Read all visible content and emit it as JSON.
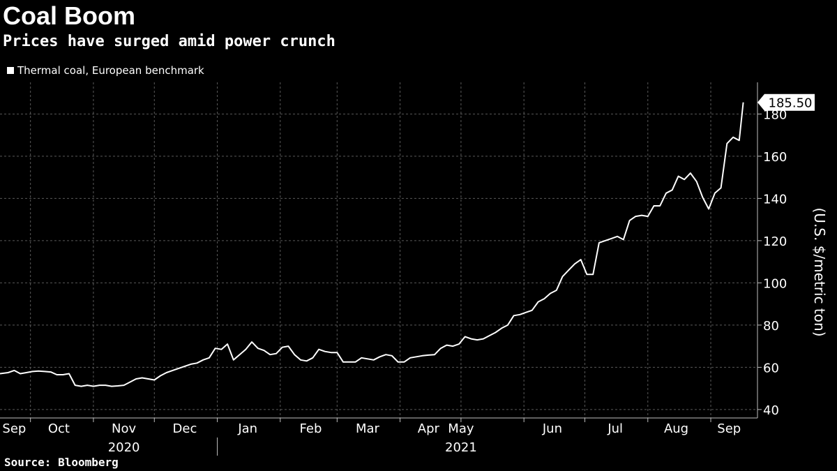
{
  "header": {
    "title": "Coal Boom",
    "subtitle": "Prices have surged amid power crunch"
  },
  "legend": {
    "label": "Thermal coal, European benchmark"
  },
  "source": "Source: Bloomberg",
  "colors": {
    "background": "#000000",
    "line": "#ffffff",
    "grid": "#5a5a5a",
    "axis": "#bfbfbf"
  },
  "chart_data": {
    "type": "line",
    "title": "Coal Boom",
    "subtitle": "Prices have surged amid power crunch",
    "xlabel": "",
    "ylabel": "(U.S. $/metric ton)",
    "ylim": [
      36,
      195
    ],
    "yticks": [
      40,
      60,
      80,
      100,
      120,
      140,
      160,
      180
    ],
    "y_axis_side": "right",
    "grid": true,
    "legend_position": "top-left",
    "last_value_label": "185.50",
    "xlim": [
      "2020-09-16",
      "2021-09-24"
    ],
    "x_tick_labels": [
      {
        "label": "Sep",
        "date": "2020-09-23"
      },
      {
        "label": "Oct",
        "date": "2020-10-15"
      },
      {
        "label": "Nov",
        "date": "2020-11-16"
      },
      {
        "label": "Dec",
        "date": "2020-12-16"
      },
      {
        "label": "Jan",
        "date": "2021-01-16"
      },
      {
        "label": "Feb",
        "date": "2021-02-16"
      },
      {
        "label": "Mar",
        "date": "2021-03-16"
      },
      {
        "label": "Apr",
        "date": "2021-04-15"
      },
      {
        "label": "May",
        "date": "2021-05-01"
      },
      {
        "label": "Jun",
        "date": "2021-06-15"
      },
      {
        "label": "Jul",
        "date": "2021-07-16"
      },
      {
        "label": "Aug",
        "date": "2021-08-15"
      },
      {
        "label": "Sep",
        "date": "2021-09-10"
      }
    ],
    "month_gridlines": [
      "2020-10-01",
      "2020-11-01",
      "2020-12-01",
      "2021-01-01",
      "2021-02-01",
      "2021-03-01",
      "2021-04-01",
      "2021-05-01",
      "2021-06-01",
      "2021-07-01",
      "2021-08-01",
      "2021-09-01"
    ],
    "year_labels": [
      {
        "label": "2020",
        "date": "2020-11-16"
      },
      {
        "label": "2021",
        "date": "2021-05-01"
      }
    ],
    "year_divider": "2021-01-01",
    "series": [
      {
        "name": "Thermal coal, European benchmark",
        "x": [
          "2020-09-16",
          "2020-09-20",
          "2020-09-23",
          "2020-09-26",
          "2020-09-29",
          "2020-10-02",
          "2020-10-05",
          "2020-10-08",
          "2020-10-11",
          "2020-10-14",
          "2020-10-17",
          "2020-10-20",
          "2020-10-23",
          "2020-10-26",
          "2020-10-29",
          "2020-11-01",
          "2020-11-04",
          "2020-11-07",
          "2020-11-10",
          "2020-11-13",
          "2020-11-16",
          "2020-11-19",
          "2020-11-22",
          "2020-11-25",
          "2020-11-28",
          "2020-12-01",
          "2020-12-04",
          "2020-12-07",
          "2020-12-10",
          "2020-12-13",
          "2020-12-16",
          "2020-12-19",
          "2020-12-22",
          "2020-12-25",
          "2020-12-28",
          "2020-12-31",
          "2021-01-03",
          "2021-01-06",
          "2021-01-09",
          "2021-01-12",
          "2021-01-15",
          "2021-01-18",
          "2021-01-21",
          "2021-01-24",
          "2021-01-27",
          "2021-01-30",
          "2021-02-02",
          "2021-02-05",
          "2021-02-08",
          "2021-02-11",
          "2021-02-14",
          "2021-02-17",
          "2021-02-20",
          "2021-02-23",
          "2021-02-26",
          "2021-03-01",
          "2021-03-04",
          "2021-03-07",
          "2021-03-10",
          "2021-03-13",
          "2021-03-16",
          "2021-03-19",
          "2021-03-22",
          "2021-03-25",
          "2021-03-28",
          "2021-03-31",
          "2021-04-03",
          "2021-04-06",
          "2021-04-09",
          "2021-04-12",
          "2021-04-15",
          "2021-04-18",
          "2021-04-21",
          "2021-04-24",
          "2021-04-27",
          "2021-04-30",
          "2021-05-03",
          "2021-05-06",
          "2021-05-09",
          "2021-05-12",
          "2021-05-15",
          "2021-05-18",
          "2021-05-21",
          "2021-05-24",
          "2021-05-27",
          "2021-05-30",
          "2021-06-02",
          "2021-06-05",
          "2021-06-08",
          "2021-06-11",
          "2021-06-14",
          "2021-06-17",
          "2021-06-20",
          "2021-06-23",
          "2021-06-26",
          "2021-06-29",
          "2021-07-02",
          "2021-07-05",
          "2021-07-08",
          "2021-07-11",
          "2021-07-14",
          "2021-07-17",
          "2021-07-20",
          "2021-07-23",
          "2021-07-26",
          "2021-07-29",
          "2021-08-01",
          "2021-08-04",
          "2021-08-07",
          "2021-08-10",
          "2021-08-13",
          "2021-08-16",
          "2021-08-19",
          "2021-08-22",
          "2021-08-25",
          "2021-08-28",
          "2021-08-31",
          "2021-09-03",
          "2021-09-06",
          "2021-09-09",
          "2021-09-12",
          "2021-09-15",
          "2021-09-17"
        ],
        "y": [
          57.0,
          57.5,
          58.5,
          57.0,
          57.5,
          58.0,
          58.2,
          58.0,
          57.8,
          56.5,
          56.5,
          57.0,
          51.5,
          51.0,
          51.5,
          51.0,
          51.5,
          51.5,
          51.0,
          51.2,
          51.5,
          53.0,
          54.5,
          55.0,
          54.5,
          54.0,
          56.0,
          57.5,
          58.5,
          59.5,
          60.5,
          61.5,
          62.0,
          63.5,
          64.5,
          69.0,
          68.5,
          71.0,
          63.5,
          66.0,
          68.5,
          72.0,
          69.0,
          68.0,
          66.0,
          66.5,
          69.5,
          70.0,
          66.0,
          63.5,
          63.0,
          64.5,
          68.5,
          67.5,
          67.0,
          67.0,
          62.5,
          62.5,
          62.5,
          64.5,
          64.0,
          63.5,
          65.0,
          66.0,
          65.5,
          62.5,
          62.5,
          64.5,
          65.0,
          65.5,
          65.8,
          66.0,
          69.0,
          70.5,
          70.0,
          71.0,
          74.5,
          73.5,
          73.0,
          73.5,
          75.0,
          76.5,
          78.5,
          80.0,
          84.5,
          85.0,
          86.0,
          87.0,
          91.0,
          92.5,
          95.0,
          96.5,
          103.0,
          106.0,
          109.0,
          111.0,
          104.0,
          104.0,
          119.0,
          120.0,
          121.0,
          122.0,
          120.5,
          129.5,
          131.5,
          132.0,
          131.5,
          136.5,
          136.5,
          142.5,
          144.0,
          150.5,
          149.0,
          152.0,
          148.0,
          140.5,
          135.0,
          142.5,
          145.0,
          166.0,
          169.0,
          167.5,
          185.5
        ]
      }
    ]
  }
}
